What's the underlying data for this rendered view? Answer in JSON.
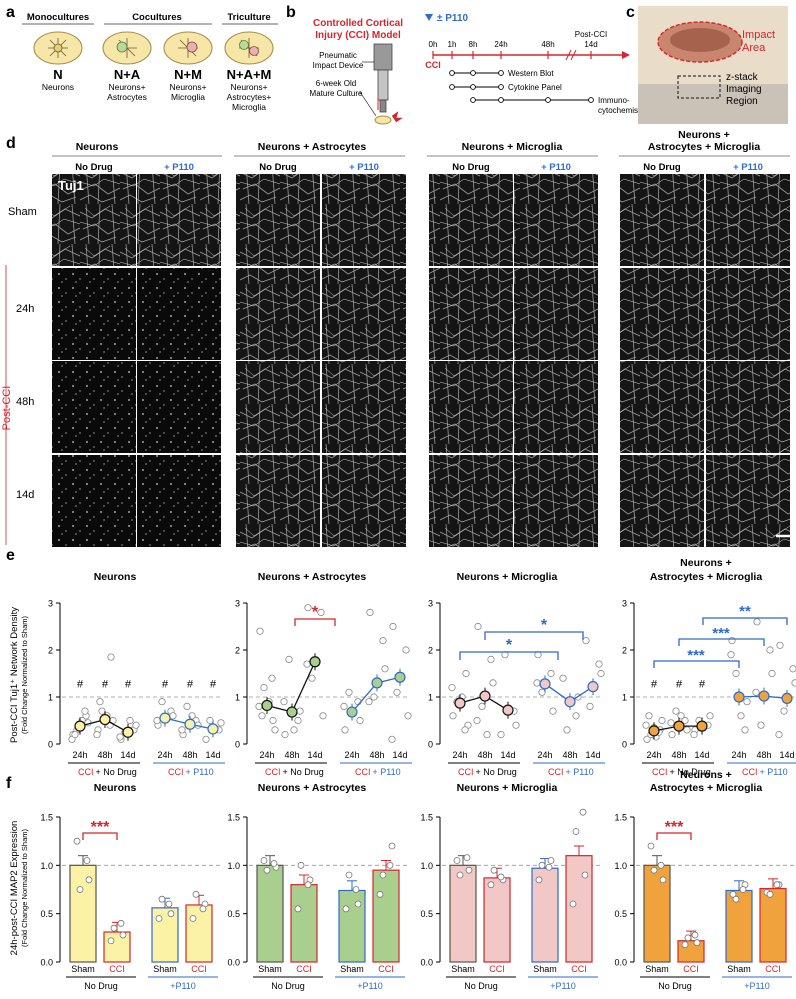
{
  "panel_letters": [
    "a",
    "b",
    "c",
    "d",
    "e",
    "f"
  ],
  "panel_a": {
    "headers": [
      "Monocultures",
      "Cocultures",
      "Triculture"
    ],
    "cultures": [
      {
        "code": "N",
        "desc": [
          "Neurons"
        ]
      },
      {
        "code": "N+A",
        "desc": [
          "Neurons+",
          "Astrocytes"
        ]
      },
      {
        "code": "N+M",
        "desc": [
          "Neurons+",
          "Microglia"
        ]
      },
      {
        "code": "N+A+M",
        "desc": [
          "Neurons+",
          "Astrocytes+",
          "Microglia"
        ]
      }
    ]
  },
  "panel_b": {
    "title": [
      "Controlled Cortical",
      "Injury (CCI) Model"
    ],
    "device_label": [
      "Pneumatic",
      "Impact Device"
    ],
    "culture_label": [
      "6-week Old",
      "Mature Culture"
    ],
    "drug": "± P110",
    "times": [
      "0h",
      "1h",
      "8h",
      "24h",
      "48h",
      "14d"
    ],
    "post_cci": "Post-CCI",
    "cci": "CCI",
    "assays": [
      "Western Blot",
      "Cytokine Panel",
      "Immuno-",
      "cytochemistry"
    ]
  },
  "panel_c": {
    "impact": [
      "Impact",
      "Area"
    ],
    "zstack": [
      "z-stack",
      "Imaging",
      "Region"
    ]
  },
  "panel_d": {
    "groups": [
      "Neurons",
      "Neurons + Astrocytes",
      "Neurons + Microglia",
      "Neurons +",
      "Astrocytes + Microglia"
    ],
    "no_drug": "No Drug",
    "p110": "+ P110",
    "stain": "Tuj1",
    "rows": [
      "Sham",
      "24h",
      "48h",
      "14d"
    ],
    "post_cci": "Post-CCI"
  },
  "panel_e": {
    "titles": [
      "Neurons",
      "Neurons + Astrocytes",
      "Neurons + Microglia",
      "Neurons +",
      "Astrocytes + Microglia"
    ],
    "ylabel": "Post-CCI Tuj1⁺ Network Density",
    "ylabel2": "(Fold Change Normalized to Sham)",
    "yticks": [
      "0",
      "1",
      "2",
      "3"
    ],
    "xticks": [
      "24h",
      "48h",
      "14d"
    ],
    "cci": "CCI",
    "no_drug": "+ No Drug",
    "p110": "+ P110",
    "hash": "#",
    "stars": [
      "*",
      "*",
      "*",
      "***",
      "***",
      "**"
    ]
  },
  "panel_f": {
    "titles": [
      "Neurons",
      "Neurons + Astrocytes",
      "Neurons + Microglia",
      "Neurons +",
      "Astrocytes + Microglia"
    ],
    "ylabel": "24h-post-CCI MAP2 Expression",
    "ylabel2": "(Fold Change Normalized to Sham)",
    "yticks": [
      "0.0",
      "0.5",
      "1.0",
      "1.5"
    ],
    "bars": [
      "Sham",
      "CCI",
      "Sham",
      "CCI"
    ],
    "no_drug": "No Drug",
    "p110": "+P110",
    "stars": "***"
  },
  "colors": {
    "red": "#d6252c",
    "blue": "#2f6bc7",
    "neurons": "#fbf2a6",
    "astro": "#a9cf8e",
    "micro": "#f2c8c6",
    "tri": "#f0a33c"
  },
  "chart_data": [
    {
      "type": "line",
      "panel": "e",
      "title": "Neurons",
      "x": [
        "24h",
        "48h",
        "14d"
      ],
      "ylim": [
        0,
        3
      ],
      "series": [
        {
          "name": "CCI + No Drug",
          "values": [
            0.38,
            0.52,
            0.25
          ]
        },
        {
          "name": "CCI + P110",
          "values": [
            0.55,
            0.42,
            0.32
          ]
        }
      ]
    },
    {
      "type": "line",
      "panel": "e",
      "title": "Neurons + Astrocytes",
      "x": [
        "24h",
        "48h",
        "14d"
      ],
      "ylim": [
        0,
        3
      ],
      "series": [
        {
          "name": "CCI + No Drug",
          "values": [
            0.82,
            0.68,
            1.75
          ]
        },
        {
          "name": "CCI + P110",
          "values": [
            0.68,
            1.3,
            1.42
          ]
        }
      ]
    },
    {
      "type": "line",
      "panel": "e",
      "title": "Neurons + Microglia",
      "x": [
        "24h",
        "48h",
        "14d"
      ],
      "ylim": [
        0,
        3
      ],
      "series": [
        {
          "name": "CCI + No Drug",
          "values": [
            0.87,
            1.02,
            0.72
          ]
        },
        {
          "name": "CCI + P110",
          "values": [
            1.28,
            0.9,
            1.22
          ]
        }
      ]
    },
    {
      "type": "line",
      "panel": "e",
      "title": "Neurons + Astrocytes + Microglia",
      "x": [
        "24h",
        "48h",
        "14d"
      ],
      "ylim": [
        0,
        3
      ],
      "series": [
        {
          "name": "CCI + No Drug",
          "values": [
            0.28,
            0.38,
            0.38
          ]
        },
        {
          "name": "CCI + P110",
          "values": [
            1.0,
            1.02,
            0.97
          ]
        }
      ]
    },
    {
      "type": "bar",
      "panel": "f",
      "title": "Neurons",
      "categories": [
        "Sham",
        "CCI",
        "Sham",
        "CCI"
      ],
      "values": [
        1.0,
        0.31,
        0.56,
        0.59
      ],
      "ylim": [
        0,
        1.5
      ]
    },
    {
      "type": "bar",
      "panel": "f",
      "title": "Neurons + Astrocytes",
      "categories": [
        "Sham",
        "CCI",
        "Sham",
        "CCI"
      ],
      "values": [
        1.0,
        0.8,
        0.74,
        0.95
      ],
      "ylim": [
        0,
        1.5
      ]
    },
    {
      "type": "bar",
      "panel": "f",
      "title": "Neurons + Microglia",
      "categories": [
        "Sham",
        "CCI",
        "Sham",
        "CCI"
      ],
      "values": [
        1.0,
        0.87,
        0.97,
        1.1
      ],
      "ylim": [
        0,
        1.5
      ]
    },
    {
      "type": "bar",
      "panel": "f",
      "title": "Neurons + Astrocytes + Microglia",
      "categories": [
        "Sham",
        "CCI",
        "Sham",
        "CCI"
      ],
      "values": [
        1.0,
        0.22,
        0.74,
        0.76
      ],
      "ylim": [
        0,
        1.5
      ]
    }
  ]
}
